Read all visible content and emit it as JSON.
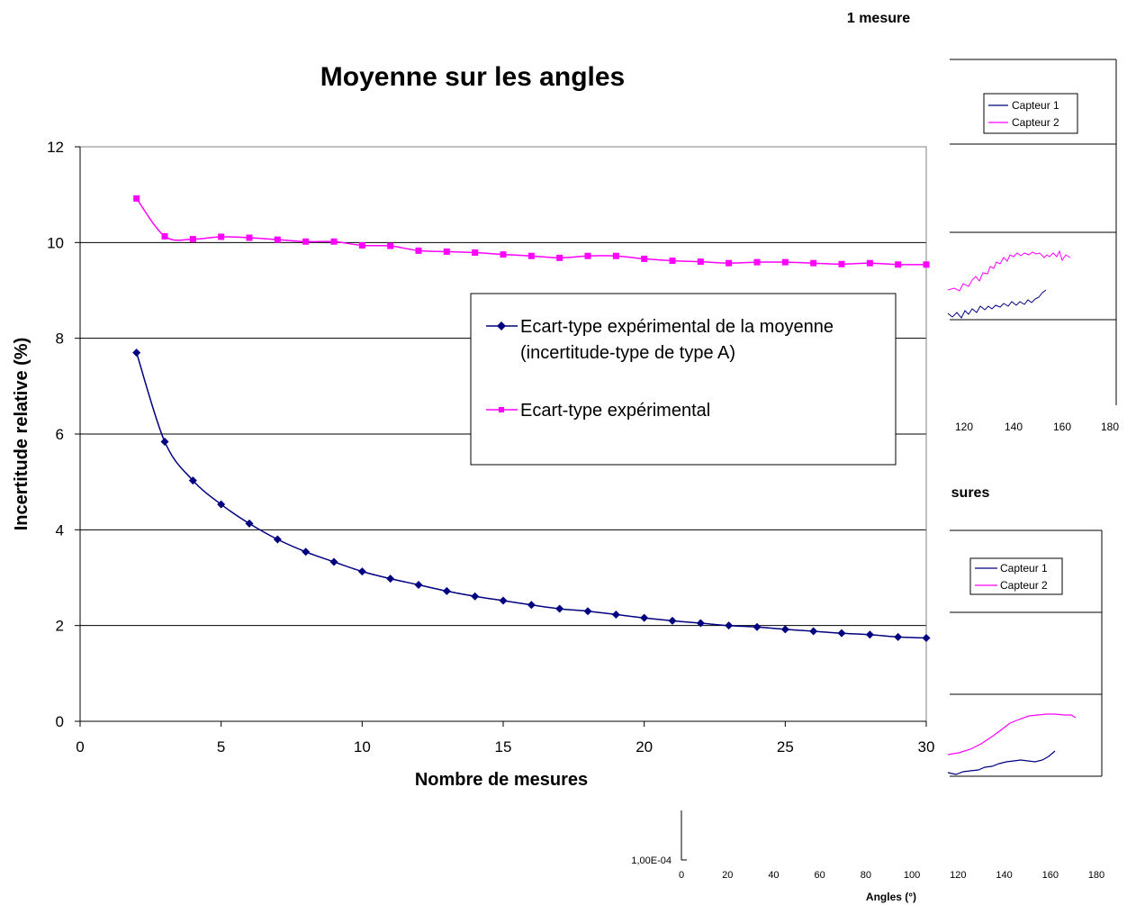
{
  "chart_data": [
    {
      "type": "line",
      "title": "Moyenne sur les angles",
      "xlabel": "Nombre de mesures",
      "ylabel": "Incertitude relative (%)",
      "xlim": [
        0,
        30
      ],
      "ylim": [
        0,
        12
      ],
      "x_ticks": [
        "0",
        "5",
        "10",
        "15",
        "20",
        "25",
        "30"
      ],
      "y_ticks": [
        "0",
        "2",
        "4",
        "6",
        "8",
        "10",
        "12"
      ],
      "grid": "horizontal",
      "legend_position": "center-right",
      "x": [
        2,
        3,
        4,
        5,
        6,
        7,
        8,
        9,
        10,
        11,
        12,
        13,
        14,
        15,
        16,
        17,
        18,
        19,
        20,
        21,
        22,
        23,
        24,
        25,
        26,
        27,
        28,
        29,
        30
      ],
      "series": [
        {
          "name": "Ecart-type expérimental de la moyenne (incertitude-type de type A)",
          "color": "#000080",
          "marker": "diamond",
          "values": [
            7.7,
            5.84,
            5.03,
            4.53,
            4.13,
            3.8,
            3.54,
            3.33,
            3.13,
            2.98,
            2.85,
            2.72,
            2.61,
            2.52,
            2.43,
            2.35,
            2.3,
            2.23,
            2.16,
            2.1,
            2.05,
            2.0,
            1.97,
            1.92,
            1.88,
            1.84,
            1.81,
            1.76,
            1.74
          ]
        },
        {
          "name": "Ecart-type expérimental",
          "color": "#ff00ff",
          "marker": "square",
          "values": [
            10.92,
            10.13,
            10.07,
            10.12,
            10.1,
            10.06,
            10.02,
            10.02,
            9.94,
            9.93,
            9.83,
            9.81,
            9.79,
            9.75,
            9.72,
            9.68,
            9.72,
            9.72,
            9.66,
            9.62,
            9.6,
            9.57,
            9.59,
            9.59,
            9.57,
            9.55,
            9.57,
            9.54,
            9.54
          ]
        }
      ],
      "legend_lines": [
        [
          "Ecart-type expérimental de la moyenne",
          "(incertitude-type de type A)"
        ],
        [
          "Ecart-type expérimental"
        ]
      ]
    },
    {
      "type": "line",
      "title": "1 mesure",
      "xlabel": "",
      "xlim": [
        0,
        180
      ],
      "x_ticks": [
        "120",
        "140",
        "160",
        "180"
      ],
      "legend_position": "top-right",
      "series": [
        {
          "name": "Capteur 1",
          "color": "#000080"
        },
        {
          "name": "Capteur 2",
          "color": "#ff00ff"
        }
      ]
    },
    {
      "type": "line",
      "title": "sures",
      "xlabel": "Angles (°)",
      "xlim": [
        0,
        180
      ],
      "x_ticks": [
        "0",
        "20",
        "40",
        "60",
        "80",
        "100",
        "120",
        "140",
        "160",
        "180"
      ],
      "y_ticks": [
        "1,00E-04"
      ],
      "legend_position": "top-right",
      "series": [
        {
          "name": "Capteur 1",
          "color": "#000080"
        },
        {
          "name": "Capteur 2",
          "color": "#ff00ff"
        }
      ]
    }
  ]
}
